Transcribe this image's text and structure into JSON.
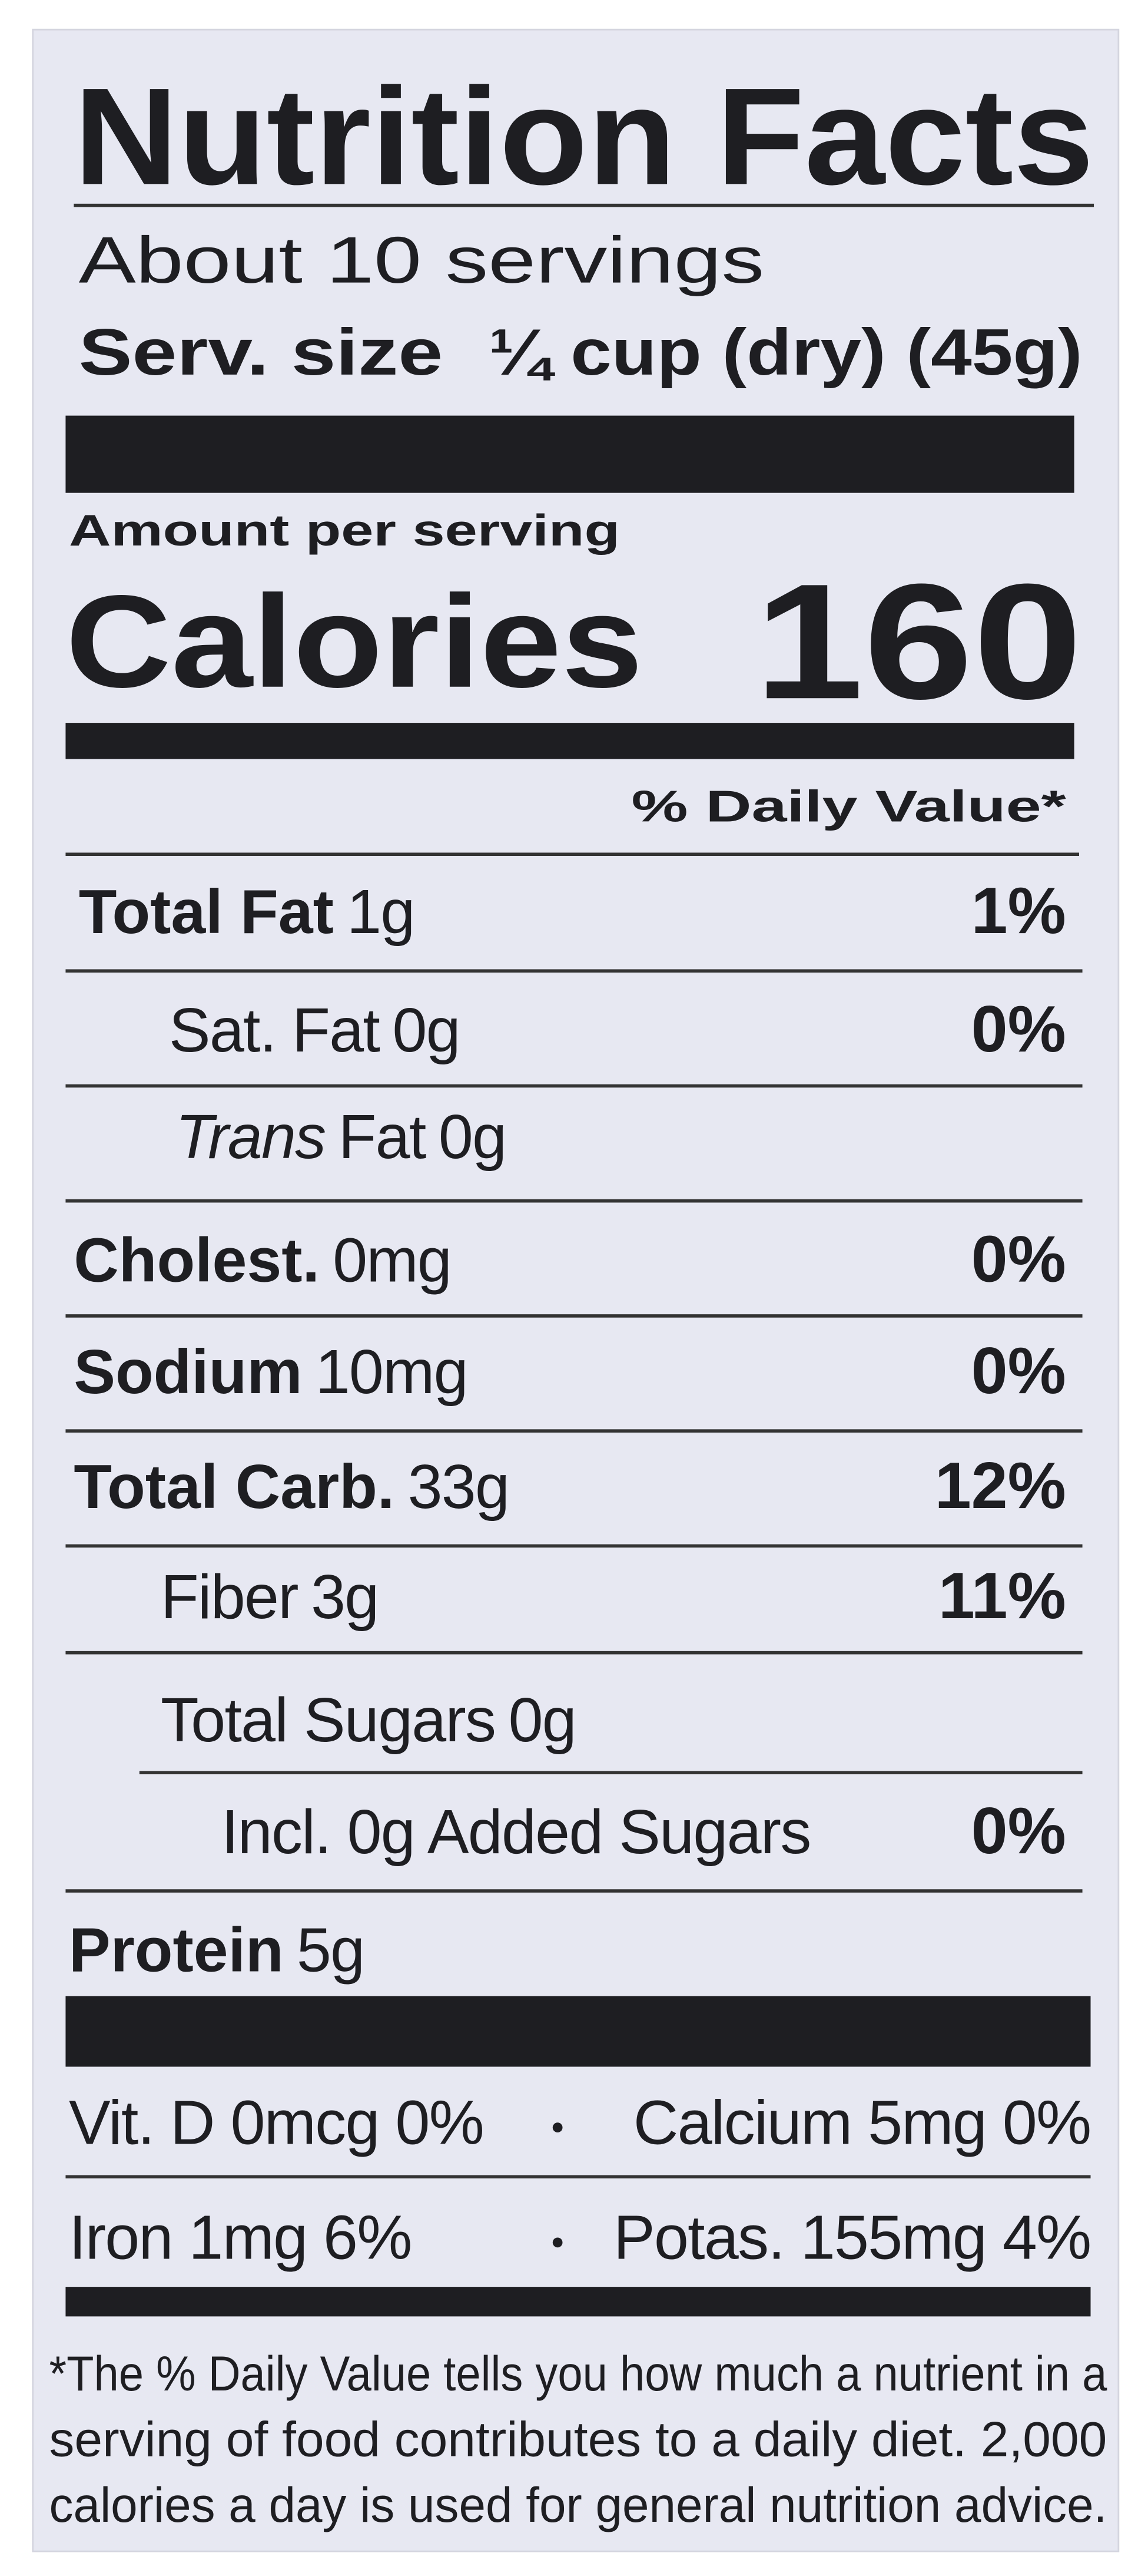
{
  "header": {
    "title": "Nutrition Facts",
    "servings": "About 10 servings",
    "serving_size_label": "Serv. size",
    "serving_size_value": "¼ cup (dry) (45g)"
  },
  "calories": {
    "amount_label": "Amount per serving",
    "label": "Calories",
    "value": "160"
  },
  "daily_value_header": "% Daily Value*",
  "nutrients": [
    {
      "name": "Total Fat",
      "amount": "1g",
      "daily_value": "1%"
    },
    {
      "name": "Sat. Fat",
      "amount": "0g",
      "daily_value": "0%"
    },
    {
      "name_italic": "Trans",
      "name": "Fat",
      "amount": "0g"
    },
    {
      "name": "Cholest.",
      "amount": "0mg",
      "daily_value": "0%"
    },
    {
      "name": "Sodium",
      "amount": "10mg",
      "daily_value": "0%"
    },
    {
      "name": "Total Carb.",
      "amount": "33g",
      "daily_value": "12%"
    },
    {
      "name": "Fiber",
      "amount": "3g",
      "daily_value": "11%"
    },
    {
      "name": "Total Sugars",
      "amount": "0g"
    },
    {
      "name": "Incl. 0g Added Sugars",
      "daily_value": "0%"
    },
    {
      "name": "Protein",
      "amount": "5g"
    }
  ],
  "vitamins": [
    [
      "Vit. D 0mcg 0%",
      "Calcium 5mg 0%"
    ],
    [
      "Iron 1mg 6%",
      "Potas. 155mg 4%"
    ]
  ],
  "footnote": [
    "*The % Daily Value tells you how much a nutrient in a",
    "serving of food contributes to a daily diet. 2,000",
    "calories a day is used for general nutrition advice."
  ]
}
